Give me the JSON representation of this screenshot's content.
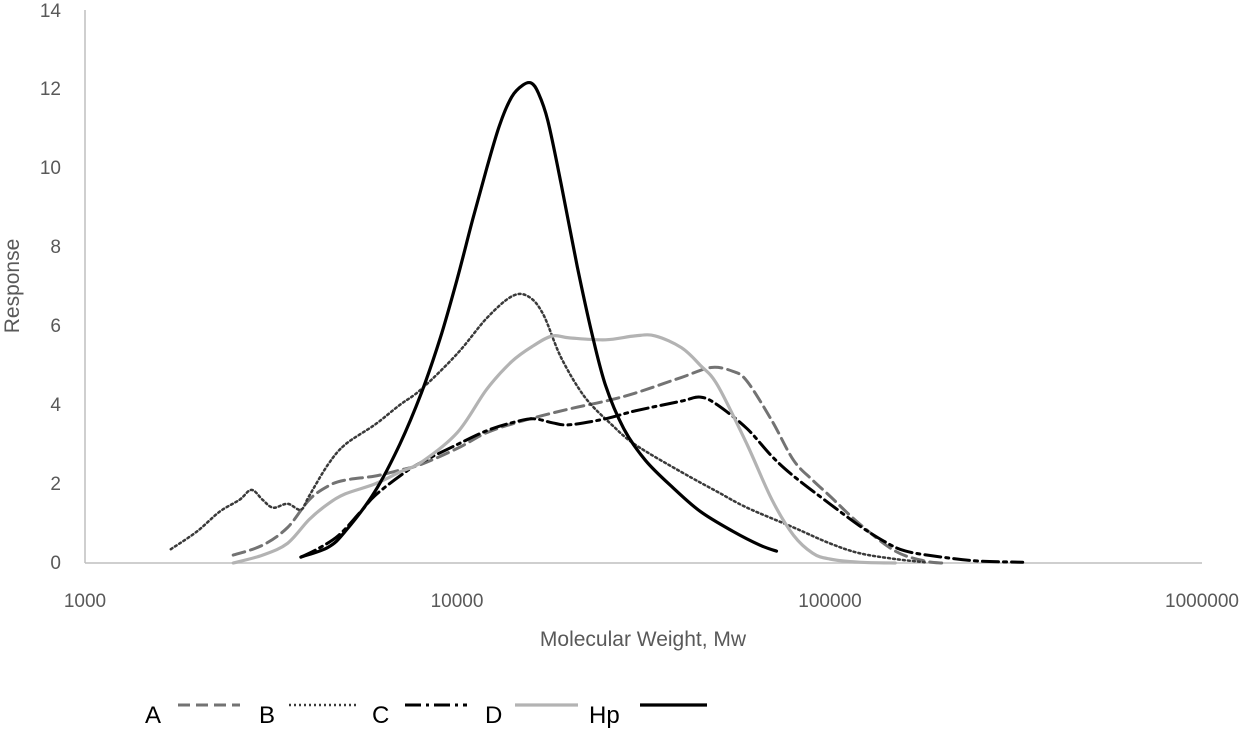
{
  "chart_data": {
    "type": "line",
    "title": "",
    "xlabel": "Molecular Weight, Mw",
    "ylabel": "Response",
    "xscale": "log",
    "xlim": [
      1000,
      1000000
    ],
    "ylim": [
      0,
      14
    ],
    "x_ticks": [
      "1000",
      "10000",
      "100000",
      "1000000"
    ],
    "y_ticks": [
      "0",
      "2",
      "4",
      "6",
      "8",
      "10",
      "12",
      "14"
    ],
    "grid": false,
    "legend_position": "bottom",
    "series": [
      {
        "name": "A",
        "color": "#737373",
        "dash": "dashed",
        "points": [
          [
            2500,
            0.2
          ],
          [
            3000,
            0.45
          ],
          [
            3500,
            0.9
          ],
          [
            4000,
            1.6
          ],
          [
            4500,
            1.95
          ],
          [
            5000,
            2.1
          ],
          [
            6000,
            2.2
          ],
          [
            7000,
            2.35
          ],
          [
            8000,
            2.5
          ],
          [
            10000,
            2.9
          ],
          [
            12000,
            3.3
          ],
          [
            15000,
            3.6
          ],
          [
            20000,
            3.9
          ],
          [
            25000,
            4.1
          ],
          [
            30000,
            4.3
          ],
          [
            40000,
            4.7
          ],
          [
            48000,
            4.95
          ],
          [
            55000,
            4.85
          ],
          [
            60000,
            4.6
          ],
          [
            70000,
            3.6
          ],
          [
            80000,
            2.6
          ],
          [
            90000,
            2.1
          ],
          [
            100000,
            1.7
          ],
          [
            120000,
            1.0
          ],
          [
            150000,
            0.3
          ],
          [
            180000,
            0.05
          ],
          [
            200000,
            0.0
          ]
        ]
      },
      {
        "name": "B",
        "color": "#3a3a3a",
        "dash": "dotted",
        "points": [
          [
            1700,
            0.35
          ],
          [
            2000,
            0.8
          ],
          [
            2300,
            1.3
          ],
          [
            2600,
            1.6
          ],
          [
            2800,
            1.85
          ],
          [
            3000,
            1.6
          ],
          [
            3200,
            1.4
          ],
          [
            3500,
            1.5
          ],
          [
            3800,
            1.35
          ],
          [
            4000,
            1.7
          ],
          [
            4500,
            2.5
          ],
          [
            5000,
            3.0
          ],
          [
            6000,
            3.5
          ],
          [
            7000,
            4.0
          ],
          [
            8000,
            4.4
          ],
          [
            10000,
            5.3
          ],
          [
            12000,
            6.2
          ],
          [
            14000,
            6.75
          ],
          [
            15500,
            6.75
          ],
          [
            17000,
            6.3
          ],
          [
            19000,
            5.2
          ],
          [
            22000,
            4.2
          ],
          [
            26000,
            3.5
          ],
          [
            30000,
            3.0
          ],
          [
            40000,
            2.3
          ],
          [
            50000,
            1.8
          ],
          [
            60000,
            1.4
          ],
          [
            80000,
            0.9
          ],
          [
            100000,
            0.5
          ],
          [
            120000,
            0.25
          ],
          [
            150000,
            0.1
          ],
          [
            180000,
            0.02
          ]
        ]
      },
      {
        "name": "C",
        "color": "#000000",
        "dash": "dashdot",
        "points": [
          [
            3800,
            0.15
          ],
          [
            4200,
            0.35
          ],
          [
            4800,
            0.7
          ],
          [
            5500,
            1.3
          ],
          [
            6000,
            1.7
          ],
          [
            7000,
            2.2
          ],
          [
            8000,
            2.55
          ],
          [
            10000,
            3.0
          ],
          [
            12000,
            3.35
          ],
          [
            14000,
            3.55
          ],
          [
            16000,
            3.65
          ],
          [
            18000,
            3.55
          ],
          [
            20000,
            3.5
          ],
          [
            25000,
            3.65
          ],
          [
            30000,
            3.85
          ],
          [
            40000,
            4.1
          ],
          [
            45000,
            4.2
          ],
          [
            50000,
            4.0
          ],
          [
            60000,
            3.4
          ],
          [
            70000,
            2.7
          ],
          [
            80000,
            2.2
          ],
          [
            100000,
            1.5
          ],
          [
            120000,
            0.95
          ],
          [
            140000,
            0.55
          ],
          [
            160000,
            0.3
          ],
          [
            200000,
            0.15
          ],
          [
            250000,
            0.05
          ],
          [
            330000,
            0.02
          ]
        ]
      },
      {
        "name": "D",
        "color": "#b3b3b3",
        "dash": "solid",
        "points": [
          [
            2500,
            0.0
          ],
          [
            3000,
            0.2
          ],
          [
            3500,
            0.5
          ],
          [
            4000,
            1.1
          ],
          [
            4500,
            1.5
          ],
          [
            5000,
            1.75
          ],
          [
            6000,
            2.0
          ],
          [
            7000,
            2.3
          ],
          [
            8000,
            2.55
          ],
          [
            10000,
            3.3
          ],
          [
            12000,
            4.4
          ],
          [
            14000,
            5.1
          ],
          [
            16000,
            5.5
          ],
          [
            18000,
            5.75
          ],
          [
            20000,
            5.7
          ],
          [
            25000,
            5.65
          ],
          [
            30000,
            5.75
          ],
          [
            34000,
            5.75
          ],
          [
            40000,
            5.45
          ],
          [
            45000,
            5.0
          ],
          [
            50000,
            4.5
          ],
          [
            60000,
            3.0
          ],
          [
            70000,
            1.6
          ],
          [
            80000,
            0.7
          ],
          [
            90000,
            0.25
          ],
          [
            100000,
            0.1
          ],
          [
            120000,
            0.02
          ],
          [
            150000,
            0.0
          ]
        ]
      },
      {
        "name": "Hp",
        "color": "#000000",
        "dash": "solid",
        "points": [
          [
            3800,
            0.15
          ],
          [
            4500,
            0.4
          ],
          [
            5000,
            0.8
          ],
          [
            6000,
            1.8
          ],
          [
            7000,
            3.0
          ],
          [
            8000,
            4.3
          ],
          [
            9000,
            5.7
          ],
          [
            10000,
            7.2
          ],
          [
            11000,
            8.7
          ],
          [
            12000,
            10.0
          ],
          [
            13000,
            11.1
          ],
          [
            14000,
            11.8
          ],
          [
            15000,
            12.1
          ],
          [
            15800,
            12.15
          ],
          [
            16500,
            11.9
          ],
          [
            17500,
            11.2
          ],
          [
            19000,
            9.6
          ],
          [
            21000,
            7.5
          ],
          [
            23000,
            5.8
          ],
          [
            25000,
            4.5
          ],
          [
            28000,
            3.4
          ],
          [
            32000,
            2.6
          ],
          [
            38000,
            1.9
          ],
          [
            45000,
            1.3
          ],
          [
            55000,
            0.8
          ],
          [
            65000,
            0.45
          ],
          [
            72000,
            0.3
          ]
        ]
      }
    ]
  }
}
